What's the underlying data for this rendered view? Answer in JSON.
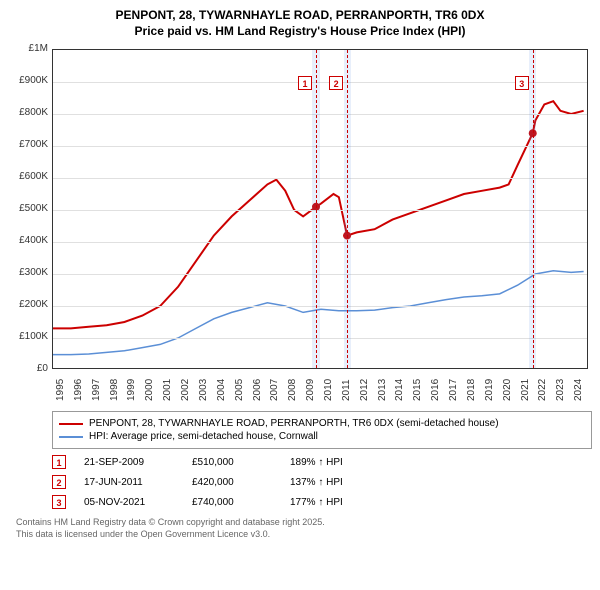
{
  "title_line1": "PENPONT, 28, TYWARNHAYLE ROAD, PERRANPORTH, TR6 0DX",
  "title_line2": "Price paid vs. HM Land Registry's House Price Index (HPI)",
  "chart": {
    "type": "line",
    "xlim": [
      1995,
      2025
    ],
    "ylim": [
      0,
      1000000
    ],
    "ytick_step": 100000,
    "ytick_labels": [
      "£0",
      "£100K",
      "£200K",
      "£300K",
      "£400K",
      "£500K",
      "£600K",
      "£700K",
      "£800K",
      "£900K",
      "£1M"
    ],
    "xtick_years": [
      1995,
      1996,
      1997,
      1998,
      1999,
      2000,
      2001,
      2002,
      2003,
      2004,
      2005,
      2006,
      2007,
      2008,
      2009,
      2010,
      2011,
      2012,
      2013,
      2014,
      2015,
      2016,
      2017,
      2018,
      2019,
      2020,
      2021,
      2022,
      2023,
      2024
    ],
    "grid_color": "#e0e0e0",
    "background_color": "#ffffff",
    "sale_bands": [
      {
        "year": 2009.72,
        "width": 0.4
      },
      {
        "year": 2011.46,
        "width": 0.4
      },
      {
        "year": 2021.85,
        "width": 0.4
      }
    ],
    "marker_boxes": [
      {
        "n": "1",
        "year": 2009.72,
        "y": 920000
      },
      {
        "n": "2",
        "year": 2011.46,
        "y": 920000
      },
      {
        "n": "3",
        "year": 2021.85,
        "y": 920000
      }
    ],
    "series": [
      {
        "name": "price_paid",
        "color": "#cc0000",
        "width": 2,
        "points": [
          [
            1995,
            130000
          ],
          [
            1996,
            130000
          ],
          [
            1997,
            135000
          ],
          [
            1998,
            140000
          ],
          [
            1999,
            150000
          ],
          [
            2000,
            170000
          ],
          [
            2001,
            200000
          ],
          [
            2002,
            260000
          ],
          [
            2003,
            340000
          ],
          [
            2004,
            420000
          ],
          [
            2005,
            480000
          ],
          [
            2006,
            530000
          ],
          [
            2007,
            580000
          ],
          [
            2007.5,
            595000
          ],
          [
            2008,
            560000
          ],
          [
            2008.5,
            500000
          ],
          [
            2009,
            480000
          ],
          [
            2009.72,
            510000
          ],
          [
            2010,
            520000
          ],
          [
            2010.7,
            550000
          ],
          [
            2011,
            540000
          ],
          [
            2011.46,
            420000
          ],
          [
            2012,
            430000
          ],
          [
            2013,
            440000
          ],
          [
            2014,
            470000
          ],
          [
            2015,
            490000
          ],
          [
            2016,
            510000
          ],
          [
            2017,
            530000
          ],
          [
            2018,
            550000
          ],
          [
            2019,
            560000
          ],
          [
            2020,
            570000
          ],
          [
            2020.5,
            580000
          ],
          [
            2021,
            640000
          ],
          [
            2021.85,
            740000
          ],
          [
            2022,
            780000
          ],
          [
            2022.5,
            830000
          ],
          [
            2023,
            840000
          ],
          [
            2023.4,
            810000
          ],
          [
            2024,
            800000
          ],
          [
            2024.7,
            810000
          ]
        ],
        "sale_dots": [
          [
            2009.72,
            510000
          ],
          [
            2011.46,
            420000
          ],
          [
            2021.85,
            740000
          ]
        ]
      },
      {
        "name": "hpi",
        "color": "#5b8fd6",
        "width": 1.5,
        "points": [
          [
            1995,
            48000
          ],
          [
            1996,
            48000
          ],
          [
            1997,
            50000
          ],
          [
            1998,
            55000
          ],
          [
            1999,
            60000
          ],
          [
            2000,
            70000
          ],
          [
            2001,
            80000
          ],
          [
            2002,
            100000
          ],
          [
            2003,
            130000
          ],
          [
            2004,
            160000
          ],
          [
            2005,
            180000
          ],
          [
            2006,
            195000
          ],
          [
            2007,
            210000
          ],
          [
            2008,
            200000
          ],
          [
            2009,
            180000
          ],
          [
            2010,
            190000
          ],
          [
            2011,
            185000
          ],
          [
            2012,
            185000
          ],
          [
            2013,
            187000
          ],
          [
            2014,
            195000
          ],
          [
            2015,
            200000
          ],
          [
            2016,
            210000
          ],
          [
            2017,
            220000
          ],
          [
            2018,
            228000
          ],
          [
            2019,
            232000
          ],
          [
            2020,
            238000
          ],
          [
            2021,
            265000
          ],
          [
            2022,
            300000
          ],
          [
            2023,
            310000
          ],
          [
            2024,
            305000
          ],
          [
            2024.7,
            308000
          ]
        ]
      }
    ]
  },
  "legend": [
    {
      "color": "#cc0000",
      "label": "PENPONT, 28, TYWARNHAYLE ROAD, PERRANPORTH, TR6 0DX (semi-detached house)"
    },
    {
      "color": "#5b8fd6",
      "label": "HPI: Average price, semi-detached house, Cornwall"
    }
  ],
  "events": [
    {
      "n": "1",
      "date": "21-SEP-2009",
      "price": "£510,000",
      "pct": "189% ↑ HPI"
    },
    {
      "n": "2",
      "date": "17-JUN-2011",
      "price": "£420,000",
      "pct": "137% ↑ HPI"
    },
    {
      "n": "3",
      "date": "05-NOV-2021",
      "price": "£740,000",
      "pct": "177% ↑ HPI"
    }
  ],
  "footer_line1": "Contains HM Land Registry data © Crown copyright and database right 2025.",
  "footer_line2": "This data is licensed under the Open Government Licence v3.0."
}
